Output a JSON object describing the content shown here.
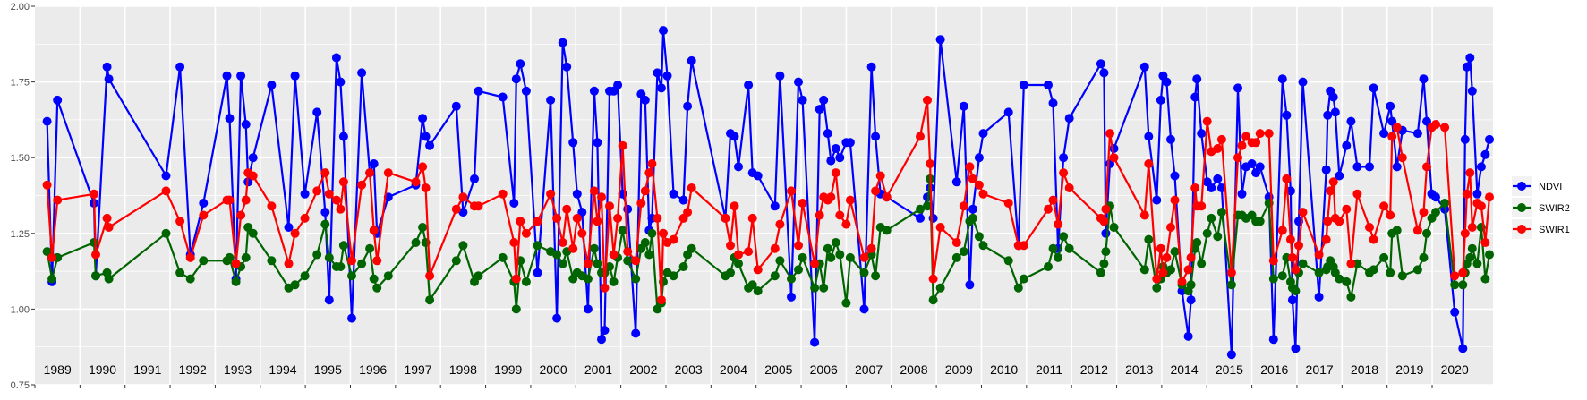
{
  "chart_data": {
    "type": "line",
    "title": "",
    "xlabel": "",
    "ylabel": "",
    "ylim": [
      0.75,
      2.0
    ],
    "xlim": [
      1989,
      2021.35
    ],
    "y_ticks": [
      "0.75",
      "1.00",
      "1.25",
      "1.50",
      "1.75",
      "2.00"
    ],
    "year_labels": [
      "1989",
      "1990",
      "1991",
      "1992",
      "1993",
      "1994",
      "1995",
      "1996",
      "1997",
      "1998",
      "1999",
      "2000",
      "2001",
      "2002",
      "2003",
      "2004",
      "2005",
      "2006",
      "2007",
      "2008",
      "2009",
      "2010",
      "2011",
      "2012",
      "2013",
      "2014",
      "2015",
      "2016",
      "2017",
      "2018",
      "2019",
      "2020"
    ],
    "grid": true,
    "legend_position": "right",
    "x": [
      1989.27,
      1989.38,
      1989.5,
      1990.31,
      1990.35,
      1990.6,
      1990.64,
      1991.91,
      1992.22,
      1992.45,
      1992.74,
      1993.26,
      1993.32,
      1993.46,
      1993.57,
      1993.68,
      1993.73,
      1993.84,
      1994.25,
      1994.63,
      1994.77,
      1994.99,
      1995.26,
      1995.44,
      1995.53,
      1995.69,
      1995.78,
      1995.85,
      1996.03,
      1996.25,
      1996.43,
      1996.52,
      1996.59,
      1996.84,
      1997.45,
      1997.6,
      1997.67,
      1997.76,
      1998.35,
      1998.5,
      1998.75,
      1998.84,
      1999.38,
      1999.63,
      1999.68,
      1999.77,
      1999.9,
      2000.15,
      2000.44,
      2000.58,
      2000.71,
      2000.8,
      2000.94,
      2001.03,
      2001.14,
      2001.27,
      2001.41,
      2001.48,
      2001.57,
      2001.64,
      2001.75,
      2001.84,
      2001.93,
      2002.04,
      2002.15,
      2002.33,
      2002.45,
      2002.54,
      2002.63,
      2002.69,
      2002.81,
      2002.9,
      2002.94,
      2003.03,
      2003.17,
      2003.39,
      2003.48,
      2003.57,
      2004.32,
      2004.43,
      2004.52,
      2004.61,
      2004.83,
      2004.92,
      2005.04,
      2005.42,
      2005.53,
      2005.78,
      2005.94,
      2006.03,
      2006.3,
      2006.41,
      2006.5,
      2006.59,
      2006.66,
      2006.77,
      2006.86,
      2007.0,
      2007.09,
      2007.4,
      2007.56,
      2007.65,
      2007.76,
      2007.9,
      2008.64,
      2008.8,
      2008.86,
      2008.93,
      2009.09,
      2009.45,
      2009.61,
      2009.74,
      2009.81,
      2009.95,
      2010.04,
      2010.6,
      2010.82,
      2010.94,
      2011.48,
      2011.59,
      2011.7,
      2011.82,
      2011.95,
      2012.65,
      2012.72,
      2012.76,
      2012.85,
      2012.94,
      2013.62,
      2013.71,
      2013.89,
      2013.98,
      2014.03,
      2014.11,
      2014.2,
      2014.29,
      2014.45,
      2014.59,
      2014.65,
      2014.74,
      2014.78,
      2014.88,
      2015.01,
      2015.1,
      2015.24,
      2015.33,
      2015.55,
      2015.69,
      2015.78,
      2015.87,
      2016.0,
      2016.09,
      2016.18,
      2016.38,
      2016.48,
      2016.68,
      2016.77,
      2016.86,
      2016.9,
      2016.97,
      2017.04,
      2017.13,
      2017.49,
      2017.65,
      2017.68,
      2017.74,
      2017.81,
      2017.85,
      2017.94,
      2018.1,
      2018.2,
      2018.34,
      2018.61,
      2018.7,
      2018.93,
      2019.07,
      2019.11,
      2019.22,
      2019.34,
      2019.68,
      2019.81,
      2019.88,
      2019.99,
      2020.08,
      2020.28,
      2020.5,
      2020.68,
      2020.73,
      2020.77,
      2020.84,
      2020.89,
      2021.0,
      2021.09,
      2021.18,
      2021.27
    ],
    "series": [
      {
        "name": "NDVI",
        "color": "#0000FF",
        "values": [
          1.62,
          1.09,
          1.69,
          1.35,
          1.11,
          1.8,
          1.76,
          1.44,
          1.8,
          1.18,
          1.35,
          1.77,
          1.63,
          1.1,
          1.77,
          1.61,
          1.42,
          1.5,
          1.74,
          1.27,
          1.77,
          1.38,
          1.65,
          1.32,
          1.03,
          1.83,
          1.75,
          1.57,
          0.97,
          1.78,
          1.45,
          1.48,
          1.25,
          1.37,
          1.41,
          1.63,
          1.57,
          1.54,
          1.67,
          1.32,
          1.43,
          1.72,
          1.7,
          1.35,
          1.76,
          1.81,
          1.72,
          1.12,
          1.69,
          0.97,
          1.88,
          1.8,
          1.55,
          1.38,
          1.32,
          1.0,
          1.72,
          1.55,
          0.9,
          0.93,
          1.72,
          1.72,
          1.74,
          1.38,
          1.33,
          0.92,
          1.71,
          1.69,
          1.26,
          1.3,
          1.78,
          1.73,
          1.92,
          1.77,
          1.38,
          1.36,
          1.67,
          1.82,
          1.3,
          1.58,
          1.57,
          1.47,
          1.74,
          1.45,
          1.44,
          1.34,
          1.77,
          1.04,
          1.75,
          1.69,
          0.89,
          1.66,
          1.69,
          1.58,
          1.49,
          1.53,
          1.5,
          1.55,
          1.55,
          1.0,
          1.8,
          1.57,
          1.38,
          1.37,
          1.3,
          1.37,
          1.4,
          1.3,
          1.89,
          1.42,
          1.67,
          1.08,
          1.33,
          1.5,
          1.58,
          1.65,
          1.21,
          1.74,
          1.74,
          1.68,
          1.2,
          1.5,
          1.63,
          1.81,
          1.78,
          1.25,
          1.48,
          1.53,
          1.8,
          1.57,
          1.36,
          1.69,
          1.77,
          1.75,
          1.56,
          1.44,
          1.06,
          0.91,
          1.03,
          1.7,
          1.76,
          1.58,
          1.42,
          1.4,
          1.43,
          1.4,
          0.85,
          1.73,
          1.38,
          1.47,
          1.48,
          1.45,
          1.47,
          1.37,
          0.9,
          1.76,
          1.64,
          1.39,
          1.03,
          0.87,
          1.29,
          1.75,
          1.04,
          1.46,
          1.64,
          1.72,
          1.7,
          1.65,
          1.44,
          1.54,
          1.62,
          1.47,
          1.47,
          1.73,
          1.58,
          1.67,
          1.62,
          1.47,
          1.59,
          1.58,
          1.76,
          1.62,
          1.38,
          1.37,
          1.33,
          0.99,
          0.87,
          1.56,
          1.8,
          1.83,
          1.72,
          1.38,
          1.47,
          1.51,
          1.56
        ]
      },
      {
        "name": "SWIR2",
        "color": "#006400",
        "values": [
          1.19,
          1.1,
          1.17,
          1.22,
          1.11,
          1.12,
          1.1,
          1.25,
          1.12,
          1.1,
          1.16,
          1.16,
          1.17,
          1.09,
          1.14,
          1.17,
          1.27,
          1.25,
          1.16,
          1.07,
          1.08,
          1.11,
          1.18,
          1.28,
          1.17,
          1.14,
          1.14,
          1.21,
          1.11,
          1.15,
          1.2,
          1.1,
          1.07,
          1.11,
          1.22,
          1.27,
          1.22,
          1.03,
          1.16,
          1.21,
          1.09,
          1.11,
          1.17,
          1.09,
          1.0,
          1.16,
          1.09,
          1.21,
          1.19,
          1.18,
          1.15,
          1.19,
          1.1,
          1.12,
          1.11,
          1.1,
          1.2,
          1.15,
          1.12,
          1.12,
          1.14,
          1.09,
          1.17,
          1.26,
          1.16,
          1.1,
          1.2,
          1.22,
          1.18,
          1.25,
          1.0,
          1.02,
          1.09,
          1.12,
          1.11,
          1.14,
          1.18,
          1.2,
          1.11,
          1.12,
          1.17,
          1.15,
          1.07,
          1.08,
          1.06,
          1.11,
          1.16,
          1.1,
          1.13,
          1.17,
          1.07,
          1.15,
          1.07,
          1.2,
          1.17,
          1.22,
          1.18,
          1.02,
          1.17,
          1.12,
          1.18,
          1.11,
          1.27,
          1.26,
          1.33,
          1.34,
          1.43,
          1.03,
          1.07,
          1.17,
          1.19,
          1.29,
          1.3,
          1.24,
          1.21,
          1.16,
          1.07,
          1.1,
          1.14,
          1.2,
          1.17,
          1.24,
          1.2,
          1.12,
          1.15,
          1.19,
          1.34,
          1.27,
          1.13,
          1.23,
          1.07,
          1.1,
          1.14,
          1.12,
          1.13,
          1.19,
          1.08,
          1.06,
          1.08,
          1.2,
          1.22,
          1.15,
          1.25,
          1.3,
          1.24,
          1.32,
          1.08,
          1.31,
          1.31,
          1.3,
          1.31,
          1.29,
          1.29,
          1.35,
          1.1,
          1.11,
          1.17,
          1.09,
          1.07,
          1.06,
          1.12,
          1.15,
          1.12,
          1.13,
          1.14,
          1.16,
          1.14,
          1.12,
          1.1,
          1.09,
          1.04,
          1.15,
          1.12,
          1.13,
          1.17,
          1.12,
          1.25,
          1.26,
          1.11,
          1.13,
          1.17,
          1.25,
          1.3,
          1.32,
          1.35,
          1.08,
          1.08,
          1.12,
          1.15,
          1.17,
          1.2,
          1.15,
          1.27,
          1.1,
          1.18
        ]
      },
      {
        "name": "SWIR1",
        "color": "#FF0000",
        "values": [
          1.41,
          1.17,
          1.36,
          1.38,
          1.18,
          1.3,
          1.27,
          1.39,
          1.29,
          1.17,
          1.31,
          1.36,
          1.36,
          1.15,
          1.31,
          1.36,
          1.45,
          1.44,
          1.34,
          1.15,
          1.25,
          1.3,
          1.39,
          1.45,
          1.38,
          1.36,
          1.33,
          1.42,
          1.16,
          1.41,
          1.45,
          1.26,
          1.16,
          1.45,
          1.42,
          1.47,
          1.4,
          1.11,
          1.33,
          1.37,
          1.34,
          1.34,
          1.38,
          1.22,
          1.1,
          1.29,
          1.25,
          1.29,
          1.38,
          1.3,
          1.22,
          1.33,
          1.2,
          1.3,
          1.25,
          1.15,
          1.39,
          1.29,
          1.37,
          1.07,
          1.34,
          1.18,
          1.3,
          1.54,
          1.19,
          1.16,
          1.35,
          1.39,
          1.45,
          1.48,
          1.3,
          1.03,
          1.25,
          1.22,
          1.23,
          1.3,
          1.32,
          1.4,
          1.3,
          1.21,
          1.34,
          1.18,
          1.19,
          1.3,
          1.13,
          1.2,
          1.28,
          1.39,
          1.21,
          1.35,
          1.15,
          1.31,
          1.37,
          1.36,
          1.37,
          1.45,
          1.31,
          1.28,
          1.36,
          1.17,
          1.2,
          1.39,
          1.44,
          1.37,
          1.57,
          1.69,
          1.48,
          1.1,
          1.27,
          1.22,
          1.34,
          1.47,
          1.43,
          1.41,
          1.38,
          1.35,
          1.21,
          1.21,
          1.33,
          1.36,
          1.28,
          1.45,
          1.4,
          1.3,
          1.29,
          1.33,
          1.58,
          1.5,
          1.31,
          1.48,
          1.1,
          1.2,
          1.12,
          1.17,
          1.27,
          1.36,
          1.09,
          1.13,
          1.17,
          1.4,
          1.34,
          1.34,
          1.62,
          1.52,
          1.53,
          1.56,
          1.12,
          1.5,
          1.54,
          1.57,
          1.55,
          1.55,
          1.58,
          1.58,
          1.16,
          1.26,
          1.43,
          1.23,
          1.17,
          1.13,
          1.21,
          1.32,
          1.18,
          1.23,
          1.29,
          1.39,
          1.42,
          1.3,
          1.29,
          1.33,
          1.15,
          1.38,
          1.27,
          1.23,
          1.34,
          1.31,
          1.57,
          1.6,
          1.5,
          1.26,
          1.32,
          1.47,
          1.6,
          1.61,
          1.6,
          1.11,
          1.12,
          1.25,
          1.38,
          1.45,
          1.27,
          1.35,
          1.34,
          1.22,
          1.37
        ]
      }
    ]
  }
}
